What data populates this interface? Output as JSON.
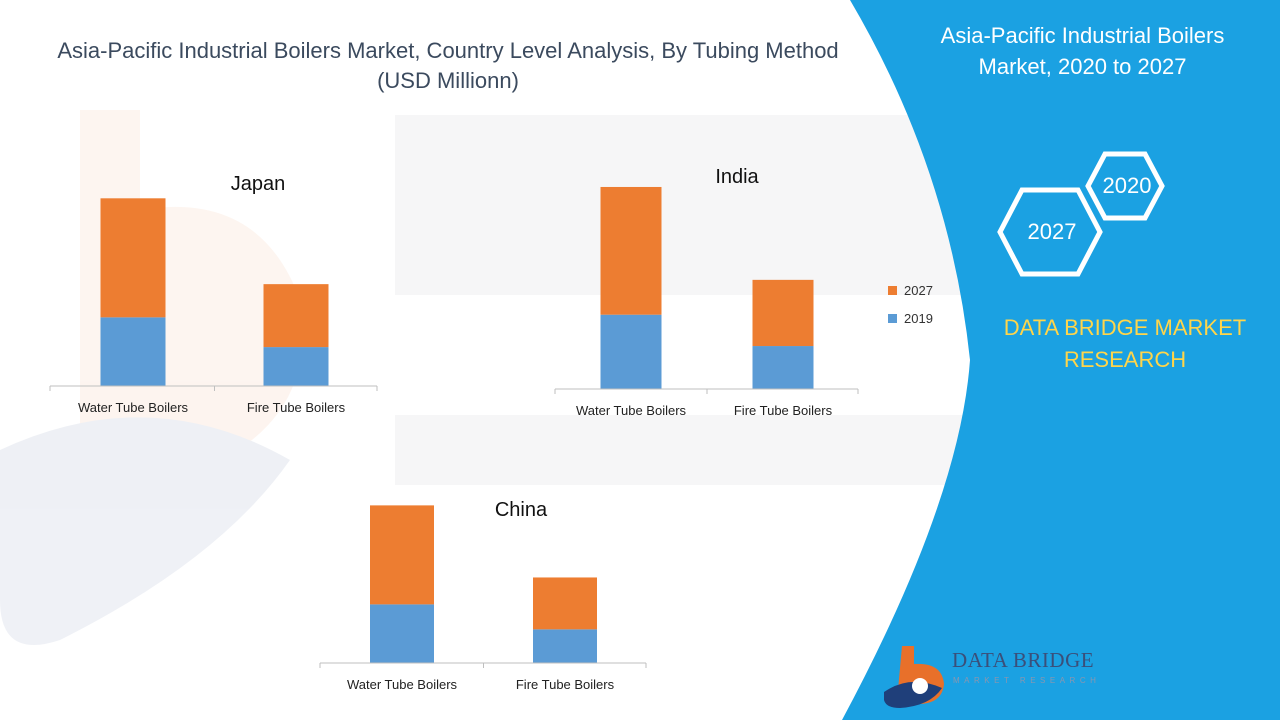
{
  "title": "Asia-Pacific Industrial Boilers Market, Country Level Analysis, By Tubing Method (USD Millionn)",
  "panel": {
    "title": "Asia-Pacific Industrial Boilers Market, 2020 to 2027",
    "hex_year_a": "2020",
    "hex_year_b": "2027",
    "brand": "DATA BRIDGE MARKET RESEARCH",
    "background_color": "#1ba1e2",
    "brand_color": "#ffd54a"
  },
  "logo": {
    "name": "DATA BRIDGE",
    "tagline": "MARKET RESEARCH"
  },
  "legend": [
    {
      "label": "2027",
      "color": "#ed7d31"
    },
    {
      "label": "2019",
      "color": "#5b9bd5"
    }
  ],
  "chart_data": [
    {
      "type": "bar",
      "stacked": true,
      "title": "Japan",
      "categories": [
        "Water Tube Boilers",
        "Fire Tube Boilers"
      ],
      "series": [
        {
          "name": "2019",
          "values": [
            60,
            34
          ],
          "color": "#5b9bd5"
        },
        {
          "name": "2027",
          "values": [
            104,
            55
          ],
          "color": "#ed7d31"
        }
      ],
      "ylim": [
        0,
        180
      ],
      "grid": false
    },
    {
      "type": "bar",
      "stacked": true,
      "title": "India",
      "categories": [
        "Water Tube Boilers",
        "Fire Tube Boilers"
      ],
      "series": [
        {
          "name": "2019",
          "values": [
            64,
            37
          ],
          "color": "#5b9bd5"
        },
        {
          "name": "2027",
          "values": [
            110,
            57
          ],
          "color": "#ed7d31"
        }
      ],
      "ylim": [
        0,
        180
      ],
      "grid": false
    },
    {
      "type": "bar",
      "stacked": true,
      "title": "China",
      "categories": [
        "Water Tube Boilers",
        "Fire Tube Boilers"
      ],
      "series": [
        {
          "name": "2019",
          "values": [
            61,
            35
          ],
          "color": "#5b9bd5"
        },
        {
          "name": "2027",
          "values": [
            103,
            54
          ],
          "color": "#ed7d31"
        }
      ],
      "ylim": [
        0,
        180
      ],
      "grid": false
    }
  ]
}
